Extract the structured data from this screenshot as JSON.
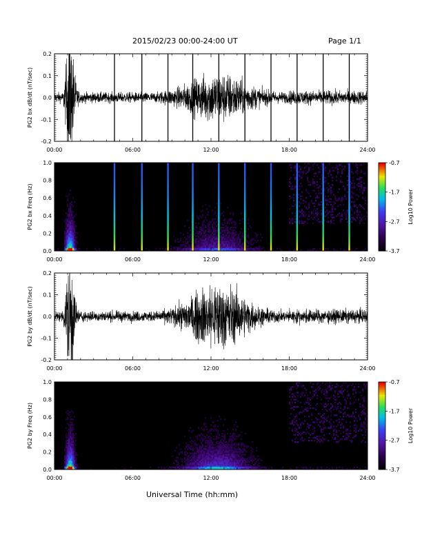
{
  "header": {
    "title": "2015/02/23  00:00-24:00 UT",
    "page": "Page 1/1"
  },
  "xaxis": {
    "label": "Universal Time (hh:mm)",
    "ticks": [
      "00:00",
      "06:00",
      "12:00",
      "18:00",
      "24:00"
    ]
  },
  "chart_data": [
    {
      "type": "line",
      "name": "PG2 bx dB/dt",
      "ylabel": "PG2 bx dB/dt (nT/sec)",
      "xlim": [
        0,
        24
      ],
      "ylim": [
        -0.2,
        0.2
      ],
      "yticks": [
        "0.2",
        "0.1",
        "0.0",
        "-0.1",
        "-0.2"
      ],
      "spikes_hours": [
        4.6,
        6.7,
        8.7,
        10.6,
        12.6,
        14.6,
        16.6,
        18.6,
        20.6,
        22.6
      ]
    },
    {
      "type": "heatmap",
      "name": "PG2 bx Freq",
      "ylabel": "PG2 bx Freq (Hz)",
      "xlim": [
        0,
        24
      ],
      "ylim": [
        0.0,
        1.0
      ],
      "yticks": [
        "1.0",
        "0.8",
        "0.6",
        "0.4",
        "0.2",
        "0.0"
      ],
      "colorbar": {
        "label": "Log10 Power",
        "ticks": [
          "-0.7",
          "-1.7",
          "-2.7",
          "-3.7"
        ]
      }
    },
    {
      "type": "line",
      "name": "PG2 by dB/dt",
      "ylabel": "PG2 by dB/dt (nT/sec)",
      "xlim": [
        0,
        24
      ],
      "ylim": [
        -0.2,
        0.2
      ],
      "yticks": [
        "0.2",
        "0.1",
        "0.0",
        "-0.1",
        "-0.2"
      ]
    },
    {
      "type": "heatmap",
      "name": "PG2 by Freq",
      "ylabel": "PG2 by Freq (Hz)",
      "xlim": [
        0,
        24
      ],
      "ylim": [
        0.0,
        1.0
      ],
      "yticks": [
        "1.0",
        "0.8",
        "0.6",
        "0.4",
        "0.2",
        "0.0"
      ],
      "colorbar": {
        "label": "Log10 Power",
        "ticks": [
          "-0.7",
          "-1.7",
          "-2.7",
          "-3.7"
        ]
      }
    }
  ]
}
